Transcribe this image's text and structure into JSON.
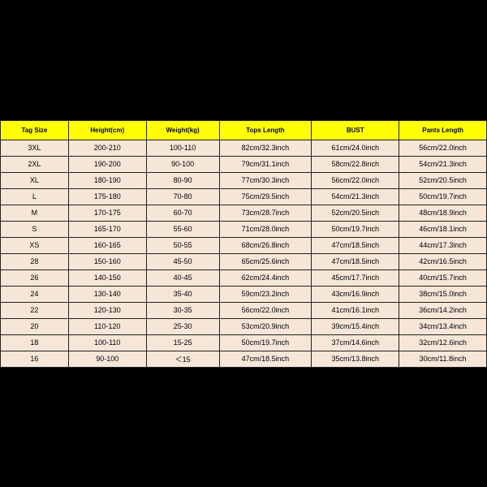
{
  "table": {
    "background_color": "#f5e6d8",
    "header_bg": "#ffff00",
    "border_color": "#222222",
    "font_size_header": 8,
    "font_size_cell": 9,
    "columns": [
      "Tag Size",
      "Height(cm)",
      "Weight(kg)",
      "Tops Length",
      "BUST",
      "Pants Length"
    ],
    "rows": [
      [
        "3XL",
        "200-210",
        "100-110",
        "82cm/32.3inch",
        "61cm/24.0inch",
        "56cm/22.0inch"
      ],
      [
        "2XL",
        "190-200",
        "90-100",
        "79cm/31.1inch",
        "58cm/22.8inch",
        "54cm/21.3inch"
      ],
      [
        "XL",
        "180-190",
        "80-90",
        "77cm/30.3inch",
        "56cm/22.0inch",
        "52cm/20.5inch"
      ],
      [
        "L",
        "175-180",
        "70-80",
        "75cm/29.5inch",
        "54cm/21.3inch",
        "50cm/19.7inch"
      ],
      [
        "M",
        "170-175",
        "60-70",
        "73cm/28.7inch",
        "52cm/20.5inch",
        "48cm/18.9inch"
      ],
      [
        "S",
        "165-170",
        "55-60",
        "71cm/28.0inch",
        "50cm/19.7inch",
        "46cm/18.1inch"
      ],
      [
        "XS",
        "160-165",
        "50-55",
        "68cm/26.8inch",
        "47cm/18.5inch",
        "44cm/17.3inch"
      ],
      [
        "28",
        "150-160",
        "45-50",
        "65cm/25.6inch",
        "47cm/18.5inch",
        "42cm/16.5inch"
      ],
      [
        "26",
        "140-150",
        "40-45",
        "62cm/24.4inch",
        "45cm/17.7inch",
        "40cm/15.7inch"
      ],
      [
        "24",
        "130-140",
        "35-40",
        "59cm/23.2inch",
        "43cm/16.9inch",
        "38cm/15.0inch"
      ],
      [
        "22",
        "120-130",
        "30-35",
        "56cm/22.0inch",
        "41cm/16.1inch",
        "36cm/14.2inch"
      ],
      [
        "20",
        "110-120",
        "25-30",
        "53cm/20.9inch",
        "39cm/15.4inch",
        "34cm/13.4inch"
      ],
      [
        "18",
        "100-110",
        "15-25",
        "50cm/19.7inch",
        "37cm/14.6inch",
        "32cm/12.6inch"
      ],
      [
        "16",
        "90-100",
        "＜15",
        "47cm/18.5inch",
        "35cm/13.8inch",
        "30cm/11.8inch"
      ]
    ]
  }
}
